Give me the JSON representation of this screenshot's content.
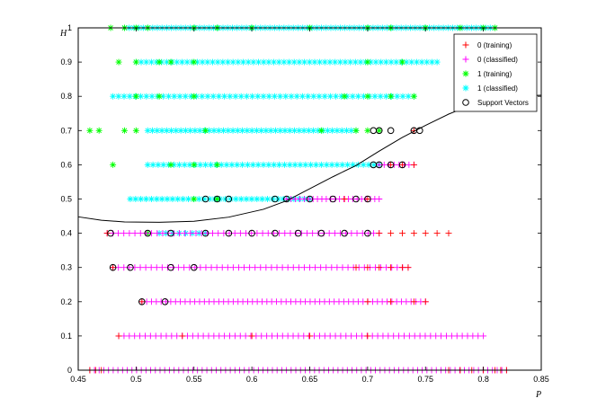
{
  "chart_data": {
    "type": "scatter",
    "title": "",
    "xlabel": "P",
    "ylabel": "H",
    "xlim": [
      0.45,
      0.85
    ],
    "ylim": [
      0,
      1
    ],
    "xticks": [
      "0.45",
      "0.5",
      "0.55",
      "0.6",
      "0.65",
      "0.7",
      "0.75",
      "0.8",
      "0.85"
    ],
    "yticks": [
      "0",
      "0.1",
      "0.2",
      "0.3",
      "0.4",
      "0.5",
      "0.6",
      "0.7",
      "0.8",
      "0.9",
      "1"
    ],
    "grid": false,
    "legend_position": "top-right",
    "legend": [
      {
        "label": "0 (training)",
        "marker": "plus",
        "color": "#ff0000"
      },
      {
        "label": "0 (classified)",
        "marker": "plus",
        "color": "#ff00ff"
      },
      {
        "label": "1 (training)",
        "marker": "star",
        "color": "#00ff00"
      },
      {
        "label": "1 (classified)",
        "marker": "star",
        "color": "#00ffff"
      },
      {
        "label": "Support Vectors",
        "marker": "circle",
        "color": "#000000"
      }
    ],
    "series": [
      {
        "name": "0 (training)",
        "marker": "plus",
        "color": "#ff0000",
        "rows": [
          {
            "y": 0.0,
            "x": [
              0.46,
              0.465,
              0.47,
              0.77,
              0.78,
              0.79,
              0.8,
              0.81,
              0.815,
              0.82
            ]
          },
          {
            "y": 0.1,
            "x": [
              0.485,
              0.54,
              0.6,
              0.65,
              0.7
            ]
          },
          {
            "y": 0.2,
            "x": [
              0.505,
              0.7,
              0.72,
              0.74,
              0.75
            ]
          },
          {
            "y": 0.3,
            "x": [
              0.48,
              0.69,
              0.7,
              0.71,
              0.72,
              0.73,
              0.735
            ]
          },
          {
            "y": 0.4,
            "x": [
              0.475,
              0.71,
              0.72,
              0.73,
              0.74,
              0.75,
              0.76,
              0.77
            ]
          },
          {
            "y": 0.5,
            "x": [
              0.68,
              0.7
            ]
          },
          {
            "y": 0.6,
            "x": [
              0.72,
              0.73,
              0.74
            ]
          },
          {
            "y": 0.7,
            "x": [
              0.74
            ]
          }
        ]
      },
      {
        "name": "0 (classified)",
        "marker": "plus",
        "color": "#ff00ff",
        "rows": [
          {
            "y": 0.0,
            "x0": 0.46,
            "x1": 0.82,
            "n": 90
          },
          {
            "y": 0.1,
            "x0": 0.485,
            "x1": 0.8,
            "n": 70
          },
          {
            "y": 0.2,
            "x0": 0.505,
            "x1": 0.75,
            "n": 60
          },
          {
            "y": 0.3,
            "x0": 0.48,
            "x1": 0.735,
            "n": 55
          },
          {
            "y": 0.4,
            "x0": 0.475,
            "x1": 0.71,
            "n": 50
          },
          {
            "y": 0.5,
            "x0": 0.63,
            "x1": 0.71,
            "n": 22
          },
          {
            "y": 0.6,
            "x0": 0.71,
            "x1": 0.74,
            "n": 8
          }
        ]
      },
      {
        "name": "1 (training)",
        "marker": "star",
        "color": "#00ff00",
        "rows": [
          {
            "y": 1.0,
            "x": [
              0.478,
              0.49,
              0.5,
              0.51,
              0.55,
              0.57,
              0.6,
              0.65,
              0.7,
              0.72,
              0.75,
              0.78,
              0.8,
              0.81
            ]
          },
          {
            "y": 0.9,
            "x": [
              0.485,
              0.5,
              0.52,
              0.53,
              0.55,
              0.7,
              0.73
            ]
          },
          {
            "y": 0.8,
            "x": [
              0.5,
              0.52,
              0.55,
              0.68,
              0.7,
              0.72,
              0.74
            ]
          },
          {
            "y": 0.7,
            "x": [
              0.46,
              0.468,
              0.49,
              0.5,
              0.56,
              0.66,
              0.69,
              0.7,
              0.71
            ]
          },
          {
            "y": 0.6,
            "x": [
              0.48,
              0.53,
              0.55,
              0.57
            ]
          },
          {
            "y": 0.5,
            "x": [
              0.55,
              0.57
            ]
          },
          {
            "y": 0.4,
            "x": [
              0.51
            ]
          }
        ]
      },
      {
        "name": "1 (classified)",
        "marker": "star",
        "color": "#00ffff",
        "rows": [
          {
            "y": 1.0,
            "x0": 0.49,
            "x1": 0.81,
            "n": 80
          },
          {
            "y": 0.9,
            "x0": 0.5,
            "x1": 0.76,
            "n": 60
          },
          {
            "y": 0.8,
            "x0": 0.48,
            "x1": 0.74,
            "n": 55
          },
          {
            "y": 0.7,
            "x0": 0.51,
            "x1": 0.69,
            "n": 45
          },
          {
            "y": 0.6,
            "x0": 0.51,
            "x1": 0.71,
            "n": 45
          },
          {
            "y": 0.5,
            "x0": 0.495,
            "x1": 0.65,
            "n": 35
          },
          {
            "y": 0.4,
            "x0": 0.52,
            "x1": 0.56,
            "n": 8
          }
        ]
      },
      {
        "name": "Support Vectors",
        "marker": "circle",
        "color": "#000000",
        "points": [
          [
            0.705,
            0.7
          ],
          [
            0.71,
            0.7
          ],
          [
            0.72,
            0.7
          ],
          [
            0.74,
            0.7
          ],
          [
            0.745,
            0.7
          ],
          [
            0.705,
            0.6
          ],
          [
            0.71,
            0.6
          ],
          [
            0.72,
            0.6
          ],
          [
            0.73,
            0.6
          ],
          [
            0.56,
            0.5
          ],
          [
            0.57,
            0.5
          ],
          [
            0.58,
            0.5
          ],
          [
            0.62,
            0.5
          ],
          [
            0.63,
            0.5
          ],
          [
            0.65,
            0.5
          ],
          [
            0.67,
            0.5
          ],
          [
            0.69,
            0.5
          ],
          [
            0.7,
            0.5
          ],
          [
            0.478,
            0.4
          ],
          [
            0.51,
            0.4
          ],
          [
            0.53,
            0.4
          ],
          [
            0.56,
            0.4
          ],
          [
            0.58,
            0.4
          ],
          [
            0.6,
            0.4
          ],
          [
            0.62,
            0.4
          ],
          [
            0.64,
            0.4
          ],
          [
            0.66,
            0.4
          ],
          [
            0.68,
            0.4
          ],
          [
            0.7,
            0.4
          ],
          [
            0.48,
            0.3
          ],
          [
            0.495,
            0.3
          ],
          [
            0.53,
            0.3
          ],
          [
            0.55,
            0.3
          ],
          [
            0.505,
            0.2
          ],
          [
            0.525,
            0.2
          ]
        ]
      },
      {
        "name": "boundary",
        "marker": "line",
        "color": "#000000",
        "points": [
          [
            0.45,
            0.448
          ],
          [
            0.47,
            0.438
          ],
          [
            0.49,
            0.433
          ],
          [
            0.52,
            0.432
          ],
          [
            0.55,
            0.435
          ],
          [
            0.58,
            0.447
          ],
          [
            0.61,
            0.47
          ],
          [
            0.63,
            0.495
          ],
          [
            0.65,
            0.53
          ],
          [
            0.67,
            0.565
          ],
          [
            0.69,
            0.598
          ],
          [
            0.71,
            0.64
          ],
          [
            0.73,
            0.68
          ],
          [
            0.75,
            0.715
          ],
          [
            0.77,
            0.748
          ],
          [
            0.79,
            0.775
          ],
          [
            0.81,
            0.792
          ],
          [
            0.83,
            0.801
          ],
          [
            0.85,
            0.803
          ]
        ]
      }
    ]
  }
}
